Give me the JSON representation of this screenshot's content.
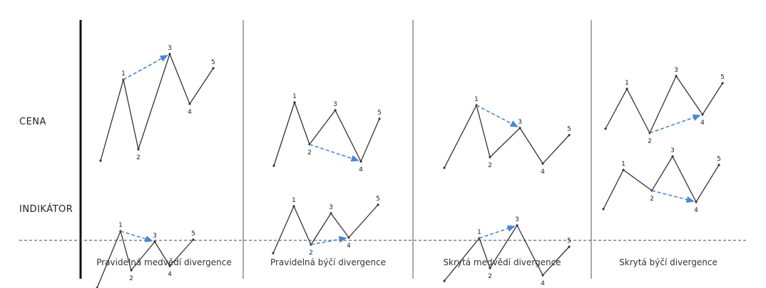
{
  "rows": [
    {
      "id": "price",
      "label": "CENA"
    },
    {
      "id": "indicator",
      "label": "INDIKÁTOR"
    }
  ],
  "columns": [
    {
      "caption": "Pravidelná medvědí divergence",
      "price": {
        "points": [
          [
            0,
            150
          ],
          [
            32,
            36
          ],
          [
            53,
            134
          ],
          [
            97,
            0
          ],
          [
            125,
            70
          ],
          [
            158,
            20
          ]
        ],
        "labels": [
          "",
          "1",
          "2",
          "3",
          "4",
          "5"
        ],
        "arrow": [
          1,
          3
        ]
      },
      "indicator": {
        "points": [
          [
            0,
            165
          ],
          [
            33,
            85
          ],
          [
            48,
            140
          ],
          [
            81,
            100
          ],
          [
            102,
            134
          ],
          [
            135,
            97
          ]
        ],
        "labels": [
          "",
          "1",
          "2",
          "3",
          "4",
          "5"
        ],
        "arrow": [
          1,
          3
        ]
      }
    },
    {
      "caption": "Pravidelná býčí divergence",
      "price": {
        "points": [
          [
            0,
            130
          ],
          [
            29,
            41
          ],
          [
            50,
            100
          ],
          [
            86,
            52
          ],
          [
            122,
            124
          ],
          [
            148,
            64
          ]
        ],
        "labels": [
          "",
          "1",
          "2",
          "3",
          "4",
          "5"
        ],
        "arrow": [
          2,
          4
        ]
      },
      "indicator": {
        "points": [
          [
            0,
            112
          ],
          [
            29,
            46
          ],
          [
            53,
            100
          ],
          [
            81,
            56
          ],
          [
            106,
            90
          ],
          [
            147,
            44
          ]
        ],
        "labels": [
          "",
          "1",
          "2",
          "3",
          "4",
          "5"
        ],
        "arrow": [
          2,
          4
        ]
      }
    },
    {
      "caption": "Skrytá medvědí divergence",
      "price": {
        "points": [
          [
            0,
            130
          ],
          [
            45,
            42
          ],
          [
            64,
            115
          ],
          [
            106,
            74
          ],
          [
            138,
            124
          ],
          [
            175,
            84
          ]
        ],
        "labels": [
          "",
          "1",
          "2",
          "3",
          "4",
          "5"
        ],
        "arrow": [
          1,
          3
        ]
      },
      "indicator": {
        "points": [
          [
            0,
            158
          ],
          [
            49,
            98
          ],
          [
            64,
            140
          ],
          [
            102,
            80
          ],
          [
            138,
            150
          ],
          [
            175,
            110
          ]
        ],
        "labels": [
          "",
          "1",
          "2",
          "3",
          "4",
          "5"
        ],
        "arrow": [
          1,
          3
        ]
      }
    },
    {
      "caption": "Skrytá býčí divergence",
      "price": {
        "points": [
          [
            0,
            86
          ],
          [
            30,
            30
          ],
          [
            62,
            92
          ],
          [
            99,
            12
          ],
          [
            136,
            66
          ],
          [
            164,
            22
          ]
        ],
        "labels": [
          "",
          "1",
          "2",
          "3",
          "4",
          "5"
        ],
        "arrow": [
          2,
          4
        ]
      },
      "indicator": {
        "points": [
          [
            0,
            79
          ],
          [
            28,
            24
          ],
          [
            68,
            53
          ],
          [
            97,
            5
          ],
          [
            130,
            69
          ],
          [
            162,
            17
          ]
        ],
        "labels": [
          "",
          "1",
          "2",
          "3",
          "4",
          "5"
        ],
        "arrow": [
          2,
          4
        ]
      }
    }
  ],
  "colors": {
    "line": "#333333",
    "arrow": "#4a86d4",
    "divider": "#555555",
    "axis": "#111111",
    "dashed": "#444444"
  }
}
